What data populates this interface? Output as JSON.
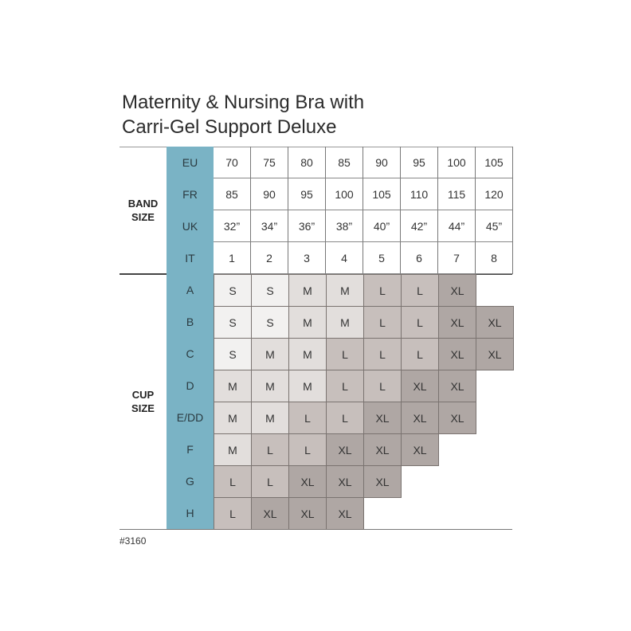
{
  "title_lines": [
    "Maternity & Nursing Bra with",
    "Carri-Gel Support Deluxe"
  ],
  "band_group_label": [
    "BAND",
    "SIZE"
  ],
  "cup_group_label": [
    "CUP",
    "SIZE"
  ],
  "band_rows": [
    {
      "label": "EU",
      "values": [
        "70",
        "75",
        "80",
        "85",
        "90",
        "95",
        "100",
        "105"
      ]
    },
    {
      "label": "FR",
      "values": [
        "85",
        "90",
        "95",
        "100",
        "105",
        "110",
        "115",
        "120"
      ]
    },
    {
      "label": "UK",
      "values": [
        "32”",
        "34”",
        "36”",
        "38”",
        "40”",
        "42”",
        "44”",
        "45”"
      ]
    },
    {
      "label": "IT",
      "values": [
        "1",
        "2",
        "3",
        "4",
        "5",
        "6",
        "7",
        "8"
      ]
    }
  ],
  "cup_rows": [
    {
      "label": "A",
      "values": [
        "S",
        "S",
        "M",
        "M",
        "L",
        "L",
        "XL",
        ""
      ]
    },
    {
      "label": "B",
      "values": [
        "S",
        "S",
        "M",
        "M",
        "L",
        "L",
        "XL",
        "XL"
      ]
    },
    {
      "label": "C",
      "values": [
        "S",
        "M",
        "M",
        "L",
        "L",
        "L",
        "XL",
        "XL"
      ]
    },
    {
      "label": "D",
      "values": [
        "M",
        "M",
        "M",
        "L",
        "L",
        "XL",
        "XL",
        ""
      ]
    },
    {
      "label": "E/DD",
      "values": [
        "M",
        "M",
        "L",
        "L",
        "XL",
        "XL",
        "XL",
        ""
      ]
    },
    {
      "label": "F",
      "values": [
        "M",
        "L",
        "L",
        "XL",
        "XL",
        "XL",
        "",
        ""
      ]
    },
    {
      "label": "G",
      "values": [
        "L",
        "L",
        "XL",
        "XL",
        "XL",
        "",
        "",
        ""
      ]
    },
    {
      "label": "H",
      "values": [
        "L",
        "XL",
        "XL",
        "XL",
        "",
        "",
        "",
        ""
      ]
    }
  ],
  "colors": {
    "label_bg": "#7ab3c5",
    "S": "#f2f1f0",
    "M": "#e2dedc",
    "L": "#c7bfbc",
    "XL": "#afa7a4"
  },
  "footer_code": "#3160"
}
